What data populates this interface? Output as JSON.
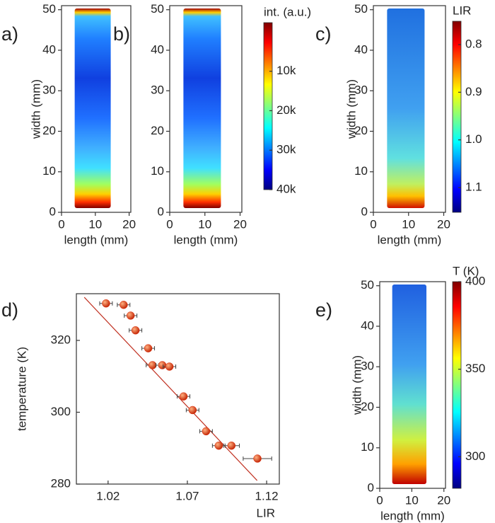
{
  "chart_data": [
    {
      "type": "heatmap",
      "panel": "a)",
      "xlabel": "length (mm)",
      "ylabel": "width (mm)",
      "xlim": [
        0,
        20.5
      ],
      "ylim": [
        0,
        51
      ],
      "xticks": [
        0,
        10,
        20
      ],
      "yticks": [
        0,
        10,
        20,
        30,
        40,
        50
      ]
    },
    {
      "type": "heatmap",
      "panel": "b)",
      "xlabel": "length (mm)",
      "xlim": [
        0,
        20.5
      ],
      "ylim": [
        0,
        51
      ],
      "xticks": [
        0,
        10,
        20
      ],
      "yticks": [
        0,
        10,
        20,
        30,
        40,
        50
      ],
      "colorbar": {
        "title": "int. (a.u.)",
        "clim": [
          40000,
          -2300
        ],
        "ticks": [
          {
            "value": 10000,
            "label": "10k"
          },
          {
            "value": 20000,
            "label": "20k"
          },
          {
            "value": 30000,
            "label": "30k"
          },
          {
            "value": 40000,
            "label": "40k"
          }
        ]
      }
    },
    {
      "type": "heatmap",
      "panel": "c)",
      "xlabel": "length (mm)",
      "ylabel": "width (mm)",
      "xlim": [
        0,
        20.5
      ],
      "ylim": [
        0,
        51
      ],
      "xticks": [
        0,
        10,
        20
      ],
      "yticks": [
        0,
        10,
        20,
        30,
        40,
        50
      ],
      "colorbar": {
        "title": "LIR",
        "clim": [
          1.152,
          0.751
        ],
        "ticks": [
          0.8,
          0.9,
          {
            "value": 1,
            "label": "1.0"
          },
          1.1
        ]
      }
    },
    {
      "type": "scatter",
      "panel": "d)",
      "xlabel": "LIR",
      "ylabel": "temperature (K)",
      "xlim": [
        1.0,
        1.128
      ],
      "ylim": [
        280,
        333
      ],
      "xticks": [
        1.02,
        1.07,
        1.12
      ],
      "yticks": [
        280,
        300,
        320
      ],
      "color": "#e03010",
      "x": [
        1.0187,
        1.0298,
        1.0342,
        1.0373,
        1.0453,
        1.048,
        1.0542,
        1.0587,
        1.0676,
        1.0733,
        1.0818,
        1.0898,
        1.0978,
        1.1142
      ],
      "y": [
        330.3,
        329.9,
        326.9,
        322.8,
        317.8,
        313.1,
        313.1,
        312.7,
        304.4,
        300.6,
        294.7,
        290.7,
        290.7,
        287.1
      ],
      "xerr": [
        0.004,
        0.004,
        0.004,
        0.004,
        0.004,
        0.004,
        0.004,
        0.004,
        0.004,
        0.004,
        0.004,
        0.004,
        0.005,
        0.009
      ],
      "fit": {
        "color": "#c03020",
        "x": [
          1.005,
          1.114
        ],
        "y": [
          332,
          281
        ]
      }
    },
    {
      "type": "heatmap",
      "panel": "e)",
      "xlabel": "length (mm)",
      "ylabel": "width (mm)",
      "xlim": [
        0,
        20.5
      ],
      "ylim": [
        0,
        51
      ],
      "xticks": [
        0,
        10,
        20
      ],
      "yticks": [
        0,
        10,
        20,
        30,
        40,
        50
      ],
      "colorbar": {
        "title": "T (K)",
        "clim": [
          282,
          400
        ],
        "ticks": [
          300,
          350,
          400
        ]
      }
    }
  ]
}
